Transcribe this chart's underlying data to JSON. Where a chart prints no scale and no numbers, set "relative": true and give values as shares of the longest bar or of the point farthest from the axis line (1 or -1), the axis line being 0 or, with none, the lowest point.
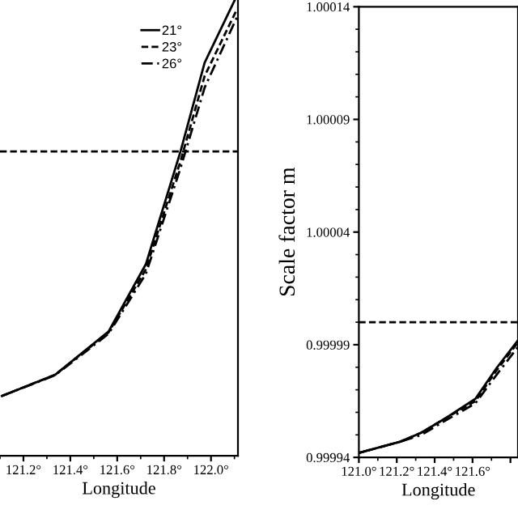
{
  "chart_data": [
    {
      "type": "line",
      "relative": true,
      "xlabel": "Longitude",
      "x": [
        121.108,
        121.335,
        121.563,
        121.722,
        121.87,
        121.973,
        122.111
      ],
      "xlim": [
        121.1,
        122.115
      ],
      "xticks": [
        {
          "value": 121.2,
          "label": "121.2°"
        },
        {
          "value": 121.4,
          "label": "121.4°"
        },
        {
          "value": 121.6,
          "label": "121.6°"
        },
        {
          "value": 121.8,
          "label": "121.8°"
        },
        {
          "value": 122.0,
          "label": "122.0°"
        }
      ],
      "series": [
        {
          "name": "21°",
          "color": "#000000",
          "line_style": "solid",
          "values": [
            0.13,
            0.176,
            0.27,
            0.416,
            0.661,
            0.854,
            1.0
          ]
        },
        {
          "name": "23°",
          "color": "#000000",
          "line_style": "dashed",
          "values": [
            0.13,
            0.176,
            0.268,
            0.405,
            0.64,
            0.825,
            0.97
          ]
        },
        {
          "name": "26°",
          "color": "#000000",
          "line_style": "dashdot",
          "values": [
            0.13,
            0.175,
            0.265,
            0.395,
            0.625,
            0.8,
            0.953
          ]
        }
      ],
      "ref_lines": [
        {
          "axis": "y",
          "value": 0.661,
          "color": "#000000",
          "line_style": "dashed"
        }
      ],
      "legend": "top right",
      "grid": false,
      "tick_labels": "x"
    },
    {
      "type": "line",
      "xlabel": "Longitude",
      "ylabel": "Scale factor m",
      "x": [
        121.0,
        121.22,
        121.33,
        121.45,
        121.615,
        121.73,
        121.84
      ],
      "xlim": [
        121.0,
        121.84
      ],
      "xticks": [
        {
          "value": 121.0,
          "label": "121.0°"
        },
        {
          "value": 121.2,
          "label": "121.2°"
        },
        {
          "value": 121.4,
          "label": "121.4°"
        },
        {
          "value": 121.6,
          "label": "121.6°"
        },
        {
          "value": 121.8,
          "label": null
        }
      ],
      "ylim": [
        0.99994,
        1.00014
      ],
      "yticks": [
        {
          "value": 0.99994,
          "label": "0.99994"
        },
        {
          "value": 0.99999,
          "label": "0.99999"
        },
        {
          "value": 1.00004,
          "label": "1.00004"
        },
        {
          "value": 1.00009,
          "label": "1.00009"
        },
        {
          "value": 1.00014,
          "label": "1.00014"
        }
      ],
      "series": [
        {
          "color": "#000000",
          "line_style": "solid",
          "values": [
            0.999942,
            0.999947,
            0.999951,
            0.999957,
            0.999966,
            0.99998,
            0.999992
          ]
        },
        {
          "color": "#000000",
          "line_style": "dashed",
          "values": [
            0.999942,
            0.999947,
            0.999951,
            0.999957,
            0.999965,
            0.999979,
            0.999991
          ]
        },
        {
          "color": "#000000",
          "line_style": "dashdot",
          "values": [
            0.999942,
            0.999947,
            0.99995,
            0.999956,
            0.999964,
            0.999977,
            0.999989
          ]
        }
      ],
      "ref_lines": [
        {
          "axis": "y",
          "value": 1.0,
          "color": "#000000",
          "line_style": "dashed"
        }
      ],
      "grid": false
    }
  ]
}
